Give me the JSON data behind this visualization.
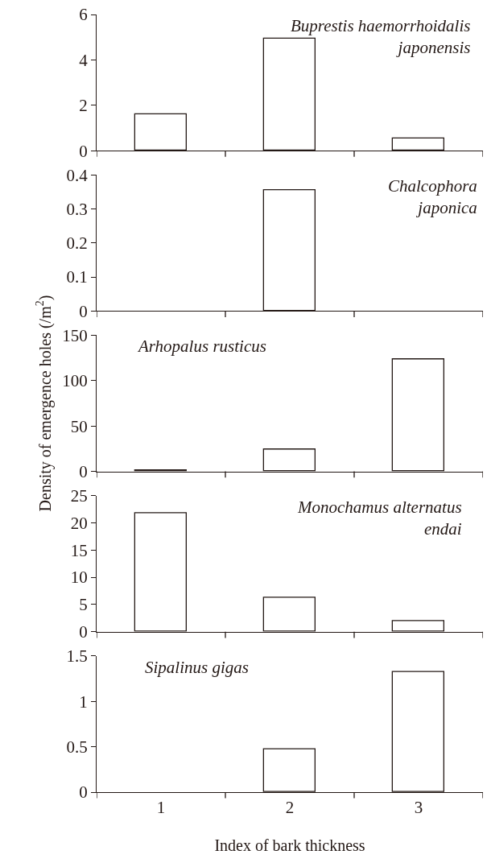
{
  "chart_data": [
    {
      "type": "bar",
      "title": "Buprestis haemorrhoidalis\njaponensis",
      "categories": [
        "1",
        "2",
        "3"
      ],
      "values": [
        1.6,
        4.95,
        0.53
      ],
      "color": "#ffffff",
      "ylim": [
        0,
        6
      ],
      "yticks": [
        0,
        2,
        4,
        6
      ],
      "tick_labels": "y"
    },
    {
      "type": "bar",
      "title": "Chalcophora\njaponica",
      "categories": [
        "1",
        "2",
        "3"
      ],
      "values": [
        null,
        0.355,
        null
      ],
      "color": "#ffffff",
      "ylim": [
        0,
        0.4
      ],
      "yticks": [
        0,
        0.1,
        0.2,
        0.3,
        0.4
      ],
      "tick_labels": "y"
    },
    {
      "type": "bar",
      "title": "Arhopalus rusticus",
      "ylabel": "Density of emergence holes (/m$^{2}$)",
      "categories": [
        "1",
        "2",
        "3"
      ],
      "values": [
        1,
        24,
        123
      ],
      "color": "#ffffff",
      "ylim": [
        0,
        150
      ],
      "yticks": [
        0,
        50,
        100,
        150
      ],
      "tick_labels": "y"
    },
    {
      "type": "bar",
      "title": "Monochamus alternatus\nendai",
      "categories": [
        "1",
        "2",
        "3"
      ],
      "values": [
        21.7,
        6.3,
        2.0
      ],
      "color": "#ffffff",
      "ylim": [
        0,
        25
      ],
      "yticks": [
        0,
        5,
        10,
        15,
        20,
        25
      ],
      "tick_labels": "y"
    },
    {
      "type": "bar",
      "title": "Sipalinus gigas",
      "xlabel": "Index of bark thickness",
      "categories": [
        "1",
        "2",
        "3"
      ],
      "values": [
        null,
        0.47,
        1.32
      ],
      "color": "#ffffff",
      "ylim": [
        0,
        1.5
      ],
      "yticks": [
        0,
        0.5,
        1,
        1.5
      ]
    }
  ]
}
